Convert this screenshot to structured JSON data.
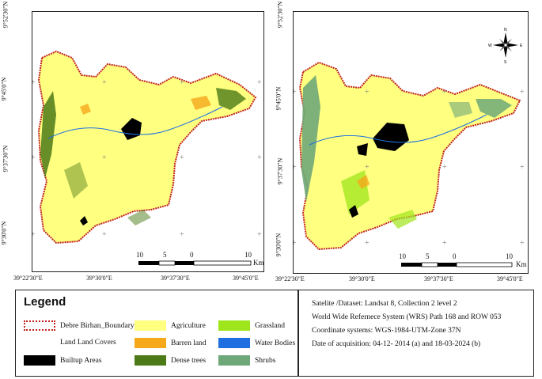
{
  "maps": [
    {
      "lat_labels": [
        "9°52'30\"N",
        "9°45'0\"N",
        "9°37'30\"N",
        "9°30'0\"N"
      ],
      "lon_labels": [
        "39°22'30\"E",
        "39°30'0\"E",
        "39°37'30\"E",
        "39°45'0\"E"
      ],
      "scale_ticks": [
        "10",
        "5",
        "0",
        "10"
      ],
      "scale_unit": "Km"
    },
    {
      "lat_labels": [
        "9°52'30\"N",
        "9°45'0\"N",
        "9°37'30\"N",
        "9°30'0\"N"
      ],
      "lon_labels": [
        "39°22'30\"E",
        "39°30'0\"E",
        "39°37'30\"E",
        "39°45'0\"E"
      ],
      "scale_ticks": [
        "10",
        "5",
        "0",
        "10"
      ],
      "scale_unit": "Km"
    }
  ],
  "compass": {
    "icon": "north-arrow-compass-icon",
    "letters": [
      "N",
      "E",
      "S",
      "W"
    ]
  },
  "legend": {
    "title": "Legend",
    "boundary_label": "Debre Birhan_Boundary",
    "landcover_heading": "Land Land Covers",
    "classes": [
      {
        "label": "Builtup Areas",
        "color": "#000000"
      },
      {
        "label": "Agriculture",
        "color": "#ffff80"
      },
      {
        "label": "Barren land",
        "color": "#f5a81a"
      },
      {
        "label": "Dense trees",
        "color": "#4c7a17"
      },
      {
        "label": "Grassland",
        "color": "#9ee61b"
      },
      {
        "label": "Water Bodies",
        "color": "#1f6fe0"
      },
      {
        "label": "Shrubs",
        "color": "#6fa878"
      }
    ],
    "boundary_color": "#c0221f"
  },
  "info": {
    "line1": "Satelite /Dataset: Landsat 8, Collection 2 level 2",
    "line2": "World Wide Refernece System (WRS) Path 168 and ROW 053",
    "line3": "Coordinate systems:  WGS-1984-UTM-Zone 37N",
    "line4": "Date of acquisition: 04-12- 2014 (a) and 18-03-2024 (b)"
  }
}
